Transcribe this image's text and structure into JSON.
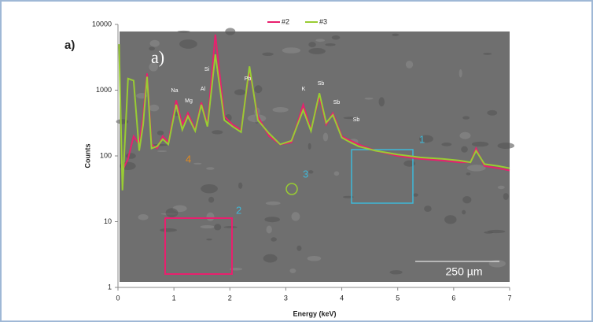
{
  "chart_data": {
    "type": "line",
    "panel_label": "a)",
    "image_label": "a)",
    "x_label": "Energy (keV)",
    "y_label": "Counts",
    "x": [
      0.02,
      0.08,
      0.18,
      0.28,
      0.38,
      0.45,
      0.52,
      0.6,
      0.7,
      0.8,
      0.9,
      1.04,
      1.15,
      1.25,
      1.38,
      1.49,
      1.6,
      1.74,
      1.9,
      2.05,
      2.2,
      2.35,
      2.5,
      2.7,
      2.9,
      3.1,
      3.31,
      3.45,
      3.6,
      3.72,
      3.84,
      4.0,
      4.1,
      4.3,
      4.6,
      5.0,
      5.4,
      5.8,
      6.1,
      6.3,
      6.4,
      6.55,
      6.8,
      7.0
    ],
    "series": [
      {
        "name": "#2",
        "color": "#e8206e",
        "values": [
          null,
          60,
          90,
          200,
          150,
          400,
          1800,
          150,
          130,
          200,
          160,
          700,
          300,
          450,
          250,
          650,
          300,
          7000,
          400,
          300,
          250,
          2000,
          400,
          200,
          150,
          160,
          600,
          250,
          800,
          300,
          450,
          200,
          180,
          150,
          120,
          100,
          90,
          85,
          80,
          80,
          130,
          70,
          65,
          60
        ]
      },
      {
        "name": "#3",
        "color": "#99cc33",
        "values": [
          5000,
          30,
          1500,
          1400,
          120,
          300,
          1600,
          130,
          140,
          180,
          150,
          600,
          250,
          400,
          240,
          600,
          280,
          3500,
          350,
          280,
          230,
          2300,
          350,
          220,
          150,
          170,
          500,
          240,
          900,
          320,
          420,
          190,
          170,
          140,
          120,
          105,
          95,
          90,
          85,
          80,
          120,
          75,
          70,
          65
        ]
      }
    ],
    "xlim": [
      0,
      7
    ],
    "xticks": [
      0,
      1,
      2,
      3,
      4,
      5,
      6,
      7
    ],
    "ylim": [
      1,
      10000
    ],
    "yticks": [
      1,
      10,
      100,
      1000,
      10000
    ],
    "log_scale": true,
    "peak_labels": [
      "Si",
      "Na",
      "Mg",
      "Al",
      "Pb",
      "K",
      "Sb",
      "Sb",
      "Sb"
    ],
    "region_labels": [
      "1",
      "2",
      "3",
      "4"
    ],
    "scale_bar": "250 µm"
  }
}
